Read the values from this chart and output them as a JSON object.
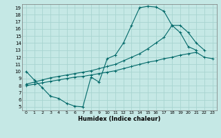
{
  "xlabel": "Humidex (Indice chaleur)",
  "bg_color": "#c5e8e5",
  "grid_color": "#a8d4d0",
  "line_color": "#006868",
  "xlim": [
    -0.5,
    23.5
  ],
  "ylim": [
    4.5,
    19.5
  ],
  "xticks": [
    0,
    1,
    2,
    3,
    4,
    5,
    6,
    7,
    8,
    9,
    10,
    11,
    12,
    13,
    14,
    15,
    16,
    17,
    18,
    19,
    20,
    21,
    22,
    23
  ],
  "yticks": [
    5,
    6,
    7,
    8,
    9,
    10,
    11,
    12,
    13,
    14,
    15,
    16,
    17,
    18,
    19
  ],
  "curve1_x": [
    0,
    1,
    2,
    3,
    4,
    5,
    6,
    7,
    8,
    9,
    10,
    11,
    12,
    13,
    14,
    15,
    16,
    17,
    18,
    19,
    20,
    21
  ],
  "curve1_y": [
    10.0,
    8.8,
    7.7,
    6.5,
    6.2,
    5.5,
    5.1,
    5.0,
    9.2,
    8.5,
    11.8,
    12.3,
    14.0,
    16.5,
    19.0,
    19.2,
    19.1,
    18.5,
    16.5,
    15.5,
    13.5,
    13.0
  ],
  "curve2_x": [
    0,
    1,
    2,
    3,
    4,
    5,
    6,
    7,
    8,
    9,
    10,
    11,
    12,
    13,
    14,
    15,
    16,
    17,
    18,
    19,
    20,
    21,
    22,
    23
  ],
  "curve2_y": [
    8.0,
    8.2,
    8.4,
    8.6,
    8.8,
    9.0,
    9.2,
    9.3,
    9.5,
    9.7,
    9.9,
    10.1,
    10.4,
    10.7,
    11.0,
    11.3,
    11.5,
    11.8,
    12.0,
    12.3,
    12.5,
    12.7,
    12.0,
    11.8
  ],
  "curve3_x": [
    0,
    1,
    2,
    3,
    4,
    5,
    6,
    7,
    8,
    9,
    10,
    11,
    12,
    13,
    14,
    15,
    16,
    17,
    18,
    19,
    20,
    21,
    22
  ],
  "curve3_y": [
    8.2,
    8.5,
    8.8,
    9.1,
    9.3,
    9.5,
    9.7,
    9.9,
    10.1,
    10.4,
    10.7,
    11.0,
    11.5,
    12.0,
    12.5,
    13.2,
    14.0,
    14.8,
    16.5,
    16.5,
    15.5,
    14.0,
    13.0
  ]
}
